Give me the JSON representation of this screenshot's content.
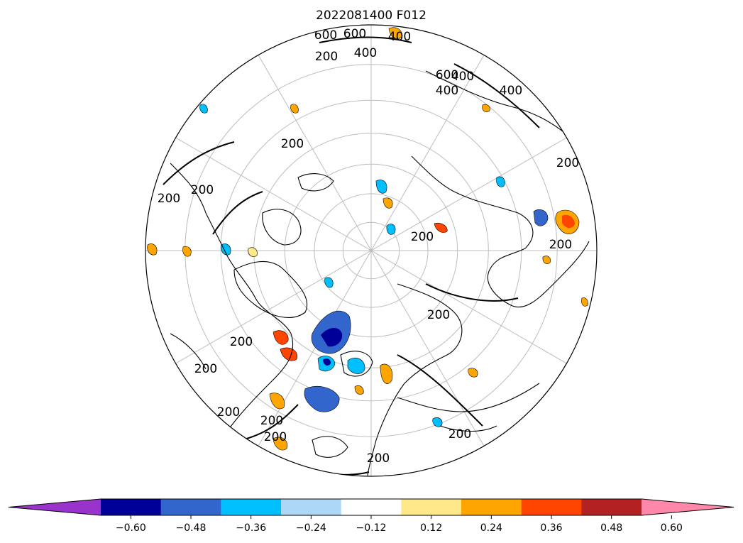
{
  "figure": {
    "title": "2022081400 F012"
  },
  "map": {
    "projection": "north-polar-stereographic",
    "graticule_meridian_step_deg": 30,
    "graticule_parallels_deg": [
      80,
      70,
      60,
      50,
      40,
      30
    ],
    "contour_labels": [
      "600",
      "600",
      "400",
      "400",
      "200",
      "400",
      "600",
      "400",
      "200",
      "200",
      "200",
      "200",
      "200",
      "200",
      "200",
      "200",
      "200",
      "200",
      "200",
      "200",
      "400",
      "200",
      "200"
    ]
  },
  "colorbar": {
    "orientation": "horizontal",
    "extend": "both",
    "boundaries": [
      -0.6,
      -0.48,
      -0.36,
      -0.24,
      -0.12,
      0.12,
      0.24,
      0.36,
      0.48,
      0.6
    ],
    "tick_labels": [
      "−0.60",
      "−0.48",
      "−0.36",
      "−0.24",
      "−0.12",
      "0.12",
      "0.24",
      "0.36",
      "0.48",
      "0.60"
    ],
    "colors": [
      "#9933cc",
      "#000099",
      "#3366cc",
      "#00bfff",
      "#add8f5",
      "#ffffff",
      "#ffe88a",
      "#ffa500",
      "#ff4500",
      "#b22222",
      "#ff88aa"
    ]
  }
}
